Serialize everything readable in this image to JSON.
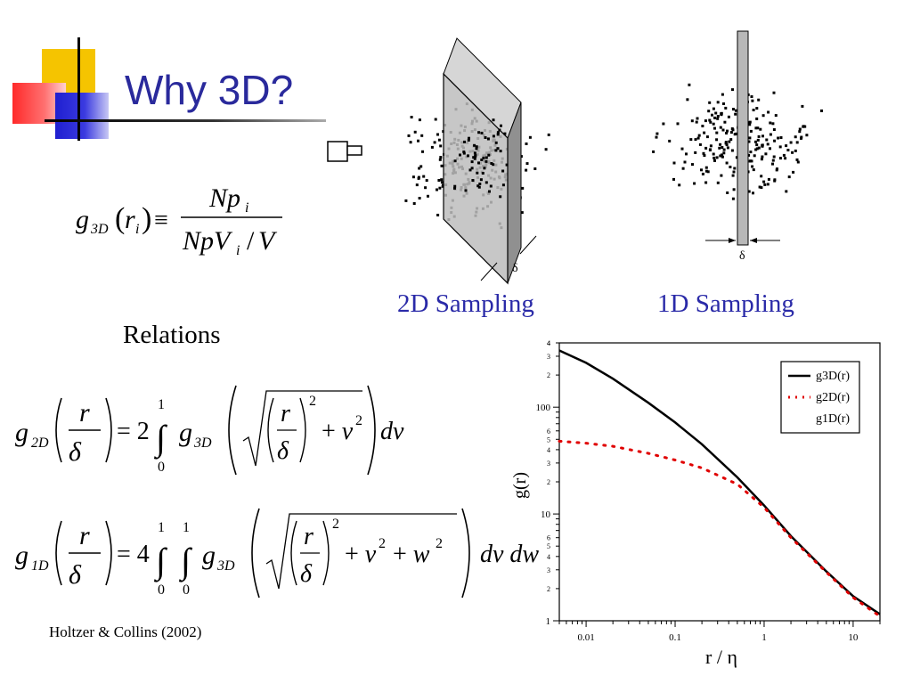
{
  "slide": {
    "title": "Why 3D?",
    "relations_label": "Relations",
    "citation": "Holtzer & Collins (2002)"
  },
  "figures": {
    "left_caption": "2D Sampling",
    "right_caption": "1D Sampling",
    "delta_symbol": "δ"
  },
  "equations": {
    "definition": {
      "lhs": "g3D(ri)",
      "numerator": "Npi",
      "denominator": "NpVi/V"
    },
    "g2d": {
      "lhs": "g2D(r/δ)",
      "coefficient": "2",
      "lower": "0",
      "upper": "1",
      "integrand": "g3D(√((r/δ)² + v²))",
      "differential": "dv"
    },
    "g1d": {
      "lhs": "g1D(r/δ)",
      "coefficient": "4",
      "lower": "0",
      "upper": "1",
      "integrand": "g3D(√((r/δ)² + v² + w²))",
      "differential": "dv dw"
    }
  },
  "chart_data": {
    "type": "line",
    "xlabel": "r / η",
    "ylabel": "g(r)",
    "xscale": "log",
    "yscale": "log",
    "xlim": [
      0.005,
      20
    ],
    "ylim": [
      1,
      400
    ],
    "x_ticks": [
      "0.01",
      "0.1",
      "1",
      "10"
    ],
    "y_ticks": [
      "1",
      "10",
      "100"
    ],
    "legend_position": "top-right",
    "series": [
      {
        "name": "g3D(r)",
        "style": "solid",
        "color": "#000000",
        "x": [
          0.005,
          0.01,
          0.02,
          0.05,
          0.1,
          0.2,
          0.5,
          1,
          2,
          5,
          10,
          20
        ],
        "y": [
          340,
          260,
          185,
          110,
          72,
          45,
          22,
          12,
          6.2,
          2.9,
          1.7,
          1.15
        ]
      },
      {
        "name": "g2D(r)",
        "style": "dotted",
        "color": "#e00000",
        "x": [
          0.005,
          0.01,
          0.02,
          0.05,
          0.1,
          0.2,
          0.5,
          1,
          2,
          5,
          10,
          20
        ],
        "y": [
          48,
          46,
          43,
          37,
          32,
          27,
          19,
          11.5,
          6,
          2.85,
          1.65,
          1.1
        ]
      },
      {
        "name": "g1D(r)",
        "style": "none",
        "color": "#000000",
        "x": [],
        "y": []
      }
    ]
  }
}
